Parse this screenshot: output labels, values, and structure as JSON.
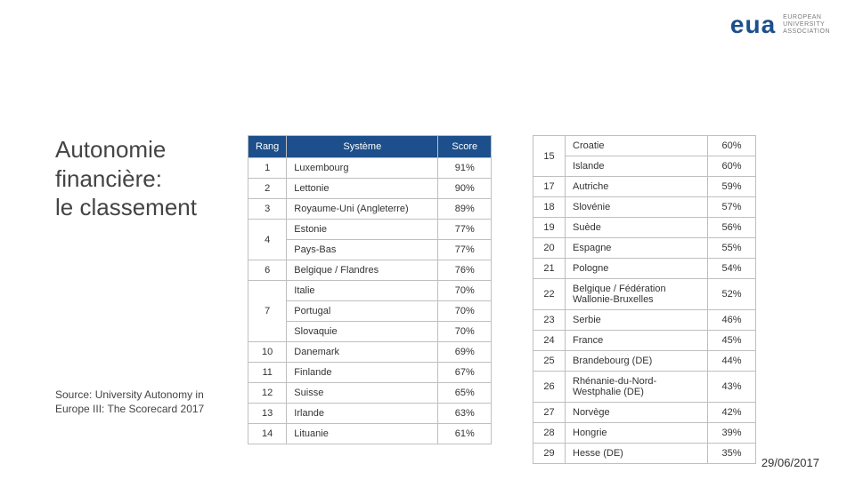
{
  "logo": {
    "brand": "eua",
    "sub1": "EUROPEAN",
    "sub2": "UNIVERSITY",
    "sub3": "ASSOCIATION",
    "brand_color": "#1c4f8b"
  },
  "title": {
    "line1": "Autonomie",
    "line2": "financière:",
    "line3": "le classement"
  },
  "source": "Source: University Autonomy in Europe III: The Scorecard 2017",
  "date": "29/06/2017",
  "copyright": "©",
  "colors": {
    "header_bg": "#1c4f8b",
    "border": "#bfbfbf"
  },
  "table1": {
    "headers": {
      "rank": "Rang",
      "system": "Système",
      "score": "Score"
    },
    "rows": [
      {
        "rank": "1",
        "system": "Luxembourg",
        "score": "91%",
        "rowspan": 1
      },
      {
        "rank": "2",
        "system": "Lettonie",
        "score": "90%",
        "rowspan": 1
      },
      {
        "rank": "3",
        "system": "Royaume-Uni (Angleterre)",
        "score": "89%",
        "rowspan": 1
      },
      {
        "rank": "4",
        "system": "Estonie",
        "score": "77%",
        "rowspan": 2
      },
      {
        "rank": "",
        "system": "Pays-Bas",
        "score": "77%",
        "rowspan": 0
      },
      {
        "rank": "6",
        "system": "Belgique / Flandres",
        "score": "76%",
        "rowspan": 1
      },
      {
        "rank": "7",
        "system": "Italie",
        "score": "70%",
        "rowspan": 3
      },
      {
        "rank": "",
        "system": "Portugal",
        "score": "70%",
        "rowspan": 0
      },
      {
        "rank": "",
        "system": "Slovaquie",
        "score": "70%",
        "rowspan": 0
      },
      {
        "rank": "10",
        "system": "Danemark",
        "score": "69%",
        "rowspan": 1
      },
      {
        "rank": "11",
        "system": "Finlande",
        "score": "67%",
        "rowspan": 1
      },
      {
        "rank": "12",
        "system": "Suisse",
        "score": "65%",
        "rowspan": 1
      },
      {
        "rank": "13",
        "system": "Irlande",
        "score": "63%",
        "rowspan": 1
      },
      {
        "rank": "14",
        "system": "Lituanie",
        "score": "61%",
        "rowspan": 1
      }
    ]
  },
  "table2": {
    "rows": [
      {
        "rank": "15",
        "system": "Croatie",
        "score": "60%",
        "rowspan": 2
      },
      {
        "rank": "",
        "system": "Islande",
        "score": "60%",
        "rowspan": 0
      },
      {
        "rank": "17",
        "system": "Autriche",
        "score": "59%",
        "rowspan": 1
      },
      {
        "rank": "18",
        "system": "Slovénie",
        "score": "57%",
        "rowspan": 1
      },
      {
        "rank": "19",
        "system": "Suède",
        "score": "56%",
        "rowspan": 1
      },
      {
        "rank": "20",
        "system": "Espagne",
        "score": "55%",
        "rowspan": 1
      },
      {
        "rank": "21",
        "system": "Pologne",
        "score": "54%",
        "rowspan": 1
      },
      {
        "rank": "22",
        "system": "Belgique / Fédération Wallonie-Bruxelles",
        "score": "52%",
        "rowspan": 1
      },
      {
        "rank": "23",
        "system": "Serbie",
        "score": "46%",
        "rowspan": 1
      },
      {
        "rank": "24",
        "system": "France",
        "score": "45%",
        "rowspan": 1
      },
      {
        "rank": "25",
        "system": "Brandebourg (DE)",
        "score": "44%",
        "rowspan": 1
      },
      {
        "rank": "26",
        "system": "Rhénanie-du-Nord-Westphalie (DE)",
        "score": "43%",
        "rowspan": 1
      },
      {
        "rank": "27",
        "system": "Norvège",
        "score": "42%",
        "rowspan": 1
      },
      {
        "rank": "28",
        "system": "Hongrie",
        "score": "39%",
        "rowspan": 1
      },
      {
        "rank": "29",
        "system": "Hesse (DE)",
        "score": "35%",
        "rowspan": 1
      }
    ]
  }
}
